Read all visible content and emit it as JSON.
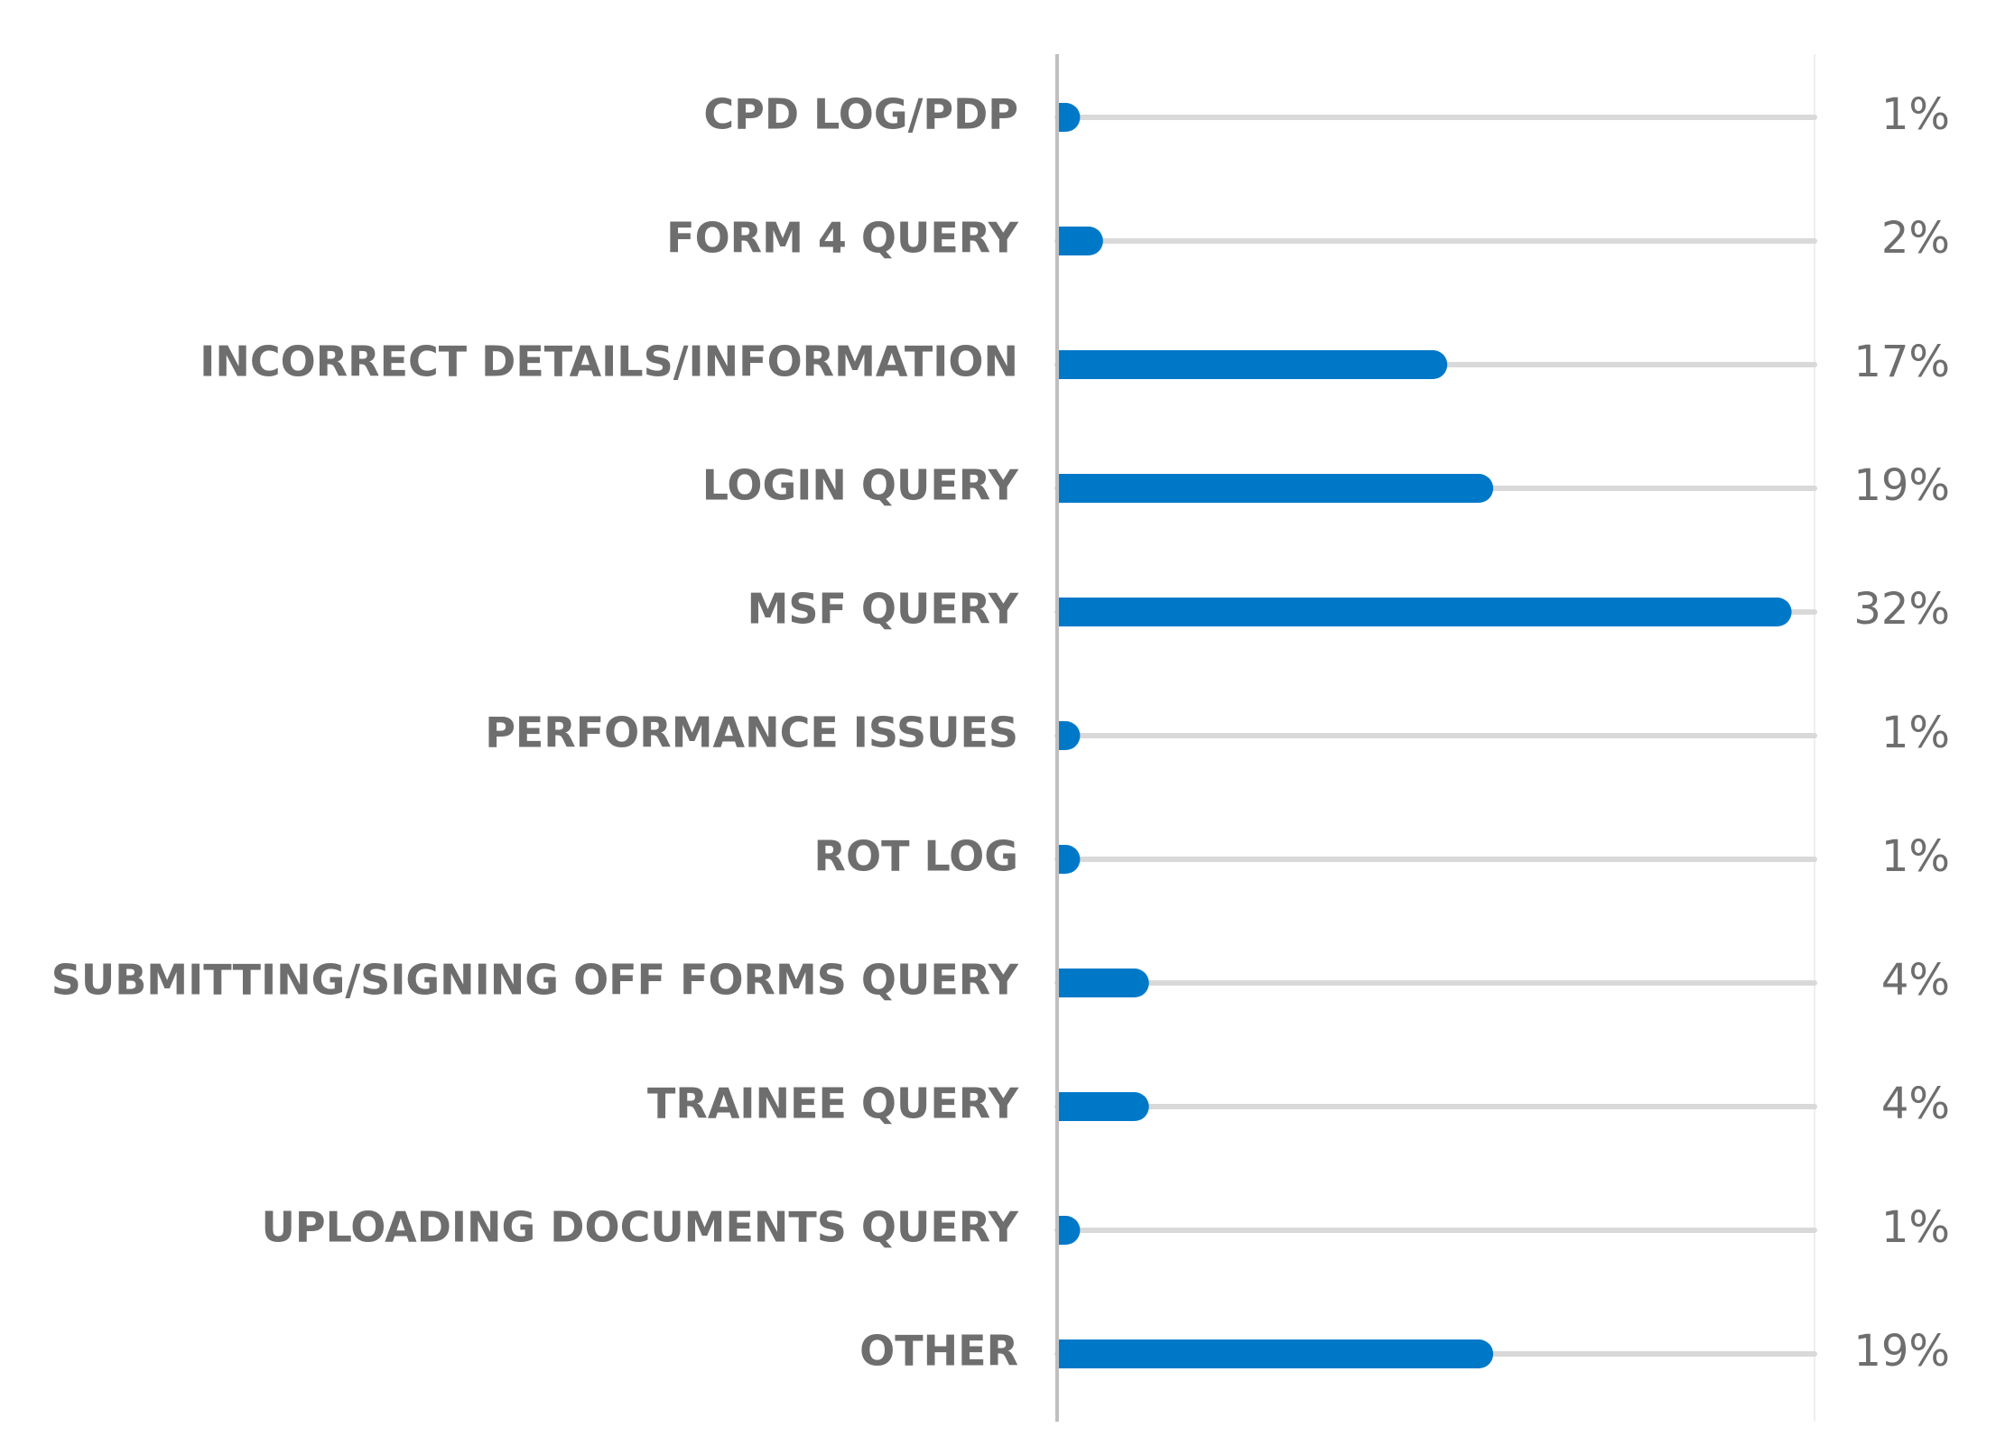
{
  "chart_data": {
    "type": "bar",
    "orientation": "horizontal",
    "categories": [
      "CPD LOG/PDP",
      "FORM 4 QUERY",
      "INCORRECT DETAILS/INFORMATION",
      "LOGIN QUERY",
      "MSF QUERY",
      "PERFORMANCE ISSUES",
      "ROT LOG",
      "SUBMITTING/SIGNING OFF FORMS QUERY",
      "TRAINEE QUERY",
      "UPLOADING DOCUMENTS QUERY",
      "OTHER"
    ],
    "values": [
      1,
      2,
      17,
      19,
      32,
      1,
      1,
      4,
      4,
      1,
      19
    ],
    "value_labels": [
      "1%",
      "2%",
      "17%",
      "19%",
      "32%",
      "1%",
      "1%",
      "4%",
      "4%",
      "1%",
      "19%"
    ],
    "xlim": [
      0,
      33
    ],
    "title": "",
    "xlabel": "",
    "ylabel": "",
    "grid": false,
    "legend": "none",
    "colors": {
      "bar": "#0078c8",
      "track": "#d9d9d9",
      "axis": "#bfbfbf",
      "text": "#6e6e6e"
    }
  }
}
